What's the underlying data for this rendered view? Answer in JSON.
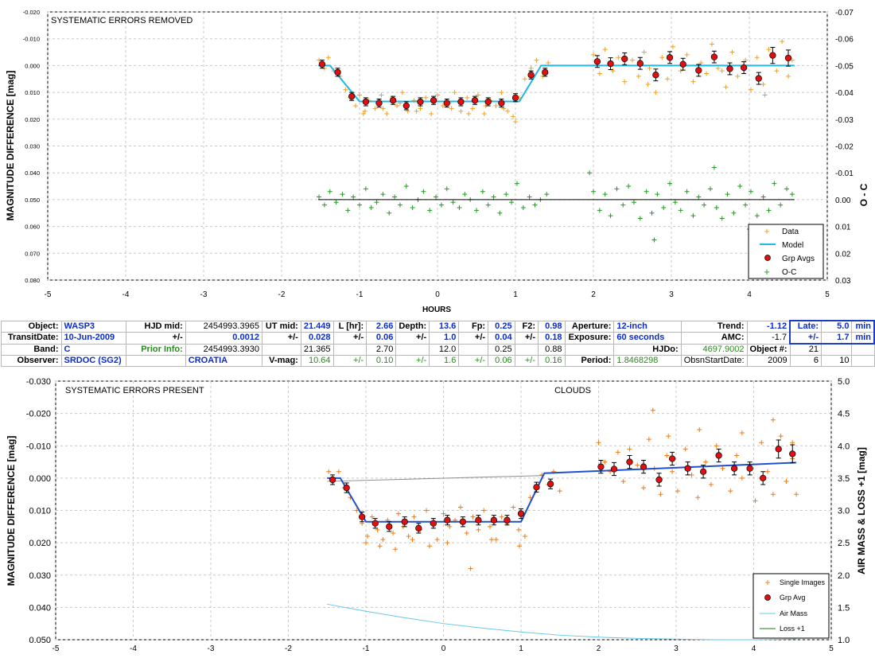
{
  "chart_data": [
    {
      "type": "scatter",
      "title": "SYSTEMATIC ERRORS REMOVED",
      "xlabel": "HOURS",
      "ylabel": "MAGNITUDE DIFFERENCE [mag]",
      "y2label": "O - C",
      "xlim": [
        -5,
        5
      ],
      "ylim": [
        -0.02,
        0.08
      ],
      "y2lim": [
        -0.07,
        0.03
      ],
      "x_ticks": [
        "-5",
        "-4",
        "-3",
        "-2",
        "-1",
        "0",
        "1",
        "2",
        "3",
        "4",
        "5"
      ],
      "y_ticks": [
        "-0.020",
        "-0.010",
        "0.000",
        "0.010",
        "0.020",
        "0.030",
        "0.040",
        "0.050",
        "0.060",
        "0.070",
        "0.080"
      ],
      "y2_ticks": [
        "-0.07",
        "-0.06",
        "-0.05",
        "-0.04",
        "-0.03",
        "-0.02",
        "-0.01",
        "0.00",
        "0.01",
        "0.02",
        "0.03"
      ],
      "grid": true,
      "legend": [
        "Data",
        "Model",
        "Grp Avgs",
        "O-C"
      ],
      "legend_position": "bottom-right",
      "colors": {
        "data": "#f0a020",
        "model": "#1fb8e8",
        "grp": "#e01010",
        "oc": "#229922",
        "ocline": "#000000"
      },
      "series": [
        {
          "name": "Model",
          "x": [
            -1.53,
            -1.38,
            -1.0,
            1.05,
            1.33,
            4.58
          ],
          "y": [
            0.0,
            0.0,
            0.0134,
            0.0134,
            0.0,
            0.0
          ]
        },
        {
          "name": "Grp Avgs",
          "x": [
            -1.48,
            -1.28,
            -1.1,
            -0.92,
            -0.75,
            -0.57,
            -0.4,
            -0.22,
            -0.05,
            0.12,
            0.3,
            0.48,
            0.65,
            0.82,
            1.0,
            1.2,
            1.38,
            2.05,
            2.22,
            2.4,
            2.6,
            2.8,
            2.98,
            3.15,
            3.35,
            3.55,
            3.75,
            3.93,
            4.12,
            4.3,
            4.5
          ],
          "y": [
            -0.0005,
            0.0025,
            0.0115,
            0.0135,
            0.014,
            0.013,
            0.015,
            0.0135,
            0.013,
            0.014,
            0.0135,
            0.013,
            0.0135,
            0.014,
            0.012,
            0.0035,
            0.0025,
            -0.0015,
            -0.0007,
            -0.0025,
            -0.0008,
            0.0035,
            -0.003,
            -0.0005,
            0.0018,
            -0.0032,
            0.0012,
            0.0008,
            0.0048,
            -0.0038,
            -0.0028
          ],
          "err": [
            0.0015,
            0.0015,
            0.0015,
            0.0015,
            0.0015,
            0.0015,
            0.0015,
            0.0015,
            0.0015,
            0.0015,
            0.0015,
            0.0015,
            0.0015,
            0.0015,
            0.0015,
            0.0015,
            0.0015,
            0.0022,
            0.0022,
            0.0022,
            0.0022,
            0.0022,
            0.0022,
            0.0022,
            0.0022,
            0.0022,
            0.0022,
            0.0022,
            0.0022,
            0.003,
            0.003
          ]
        },
        {
          "name": "Data",
          "x": [
            -1.52,
            -1.45,
            -1.4,
            -1.33,
            -1.25,
            -1.18,
            -1.12,
            -1.05,
            -1.0,
            -0.93,
            -0.88,
            -0.8,
            -0.72,
            -0.65,
            -0.58,
            -0.52,
            -0.45,
            -0.38,
            -0.3,
            -0.22,
            -0.15,
            -0.08,
            0.0,
            0.07,
            0.15,
            0.22,
            0.3,
            0.38,
            0.45,
            0.52,
            0.6,
            0.68,
            0.75,
            0.82,
            0.9,
            0.97,
            1.05,
            1.12,
            1.2,
            1.27,
            1.35,
            1.42,
            2.0,
            2.08,
            2.15,
            2.25,
            2.32,
            2.4,
            2.5,
            2.58,
            2.65,
            2.72,
            2.8,
            2.88,
            2.95,
            3.02,
            3.12,
            3.2,
            3.28,
            3.38,
            3.45,
            3.52,
            3.6,
            3.7,
            3.78,
            3.85,
            3.95,
            4.02,
            4.1,
            4.18,
            4.25,
            4.35,
            4.42,
            4.5,
            4.55,
            -0.95,
            -0.7,
            -0.48,
            -0.27,
            0.18,
            0.4,
            0.62,
            0.85,
            1.0,
            2.7,
            3.65,
            4.2
          ],
          "y": [
            -0.002,
            0.001,
            -0.003,
            0.002,
            0.004,
            0.009,
            0.012,
            0.015,
            0.011,
            0.017,
            0.013,
            0.016,
            0.011,
            0.018,
            0.012,
            0.015,
            0.01,
            0.017,
            0.013,
            0.016,
            0.012,
            0.018,
            0.011,
            0.015,
            0.014,
            0.01,
            0.017,
            0.012,
            0.016,
            0.011,
            0.018,
            0.013,
            0.015,
            0.01,
            0.017,
            0.019,
            0.012,
            0.005,
            0.001,
            -0.002,
            0.004,
            -0.001,
            -0.004,
            0.003,
            -0.006,
            0.002,
            -0.003,
            0.006,
            -0.002,
            0.004,
            -0.005,
            0.001,
            0.01,
            -0.003,
            0.005,
            -0.007,
            0.002,
            -0.004,
            0.006,
            -0.001,
            0.003,
            -0.008,
            0.001,
            0.008,
            -0.005,
            0.004,
            -0.002,
            0.009,
            -0.003,
            0.007,
            -0.006,
            0.002,
            -0.009,
            0.004,
            -0.002,
            0.018,
            0.016,
            0.014,
            0.017,
            0.016,
            0.018,
            0.015,
            0.016,
            0.021,
            0.007,
            0.002,
            0.011
          ]
        },
        {
          "name": "O-C",
          "x": [
            -1.52,
            -1.45,
            -1.38,
            -1.3,
            -1.22,
            -1.15,
            -1.08,
            -1.0,
            -0.92,
            -0.85,
            -0.78,
            -0.7,
            -0.62,
            -0.55,
            -0.48,
            -0.4,
            -0.32,
            -0.25,
            -0.18,
            -0.1,
            -0.02,
            0.05,
            0.12,
            0.2,
            0.28,
            0.35,
            0.42,
            0.5,
            0.58,
            0.65,
            0.72,
            0.8,
            0.88,
            0.95,
            1.02,
            1.1,
            1.18,
            1.25,
            1.32,
            1.4,
            2.0,
            2.08,
            2.15,
            2.22,
            2.3,
            2.38,
            2.45,
            2.52,
            2.6,
            2.68,
            2.75,
            2.82,
            2.9,
            2.98,
            3.05,
            3.12,
            3.2,
            3.28,
            3.35,
            3.42,
            3.5,
            3.58,
            3.65,
            3.72,
            3.8,
            3.88,
            3.95,
            4.02,
            4.1,
            4.18,
            4.25,
            4.32,
            4.4,
            4.48,
            4.55,
            1.95,
            2.78,
            3.55,
            4.0
          ],
          "y": [
            -0.001,
            0.002,
            -0.003,
            0.001,
            -0.002,
            0.004,
            -0.001,
            0.002,
            -0.004,
            0.003,
            0.001,
            -0.002,
            0.005,
            -0.001,
            0.002,
            -0.005,
            0.003,
            0.0,
            -0.003,
            0.004,
            -0.001,
            0.002,
            -0.004,
            0.001,
            0.003,
            -0.002,
            0.0,
            0.004,
            -0.003,
            0.002,
            -0.001,
            0.005,
            -0.002,
            0.001,
            -0.006,
            0.003,
            -0.001,
            0.002,
            0.0,
            -0.002,
            -0.003,
            0.004,
            -0.002,
            0.006,
            -0.004,
            0.002,
            -0.005,
            0.001,
            0.007,
            -0.003,
            0.005,
            -0.002,
            0.003,
            -0.006,
            0.001,
            0.004,
            -0.003,
            0.006,
            -0.001,
            0.002,
            -0.004,
            0.003,
            0.007,
            -0.002,
            0.005,
            -0.005,
            0.002,
            -0.003,
            0.006,
            -0.001,
            0.004,
            -0.006,
            0.002,
            -0.004,
            -0.002,
            -0.01,
            0.015,
            -0.012,
            0.011
          ]
        },
        {
          "name": "O-C line",
          "x": [
            -1.53,
            4.58
          ],
          "y": [
            0.0,
            0.0
          ]
        }
      ]
    },
    {
      "type": "scatter",
      "title": "SYSTEMATIC ERRORS PRESENT",
      "annotation": "CLOUDS",
      "xlabel": "",
      "ylabel": "MAGNITUDE DIFFERENCE [mag]",
      "y2label": "AIR MASS & LOSS +1 [mag]",
      "xlim": [
        -5,
        5
      ],
      "ylim": [
        -0.03,
        0.05
      ],
      "y2lim": [
        5.0,
        1.0
      ],
      "x_ticks": [
        "-5",
        "-4",
        "-3",
        "-2",
        "-1",
        "0",
        "1",
        "2",
        "3",
        "4",
        "5"
      ],
      "y_ticks": [
        "-0.030",
        "-0.020",
        "-0.010",
        "0.000",
        "0.010",
        "0.020",
        "0.030",
        "0.040",
        "0.050"
      ],
      "y2_ticks": [
        "5.0",
        "4.5",
        "4.0",
        "3.5",
        "3.0",
        "2.5",
        "2.0",
        "1.5",
        "1.0"
      ],
      "grid": true,
      "legend": [
        "Single Images",
        "Grp Avg",
        "Air Mass",
        "Loss +1"
      ],
      "legend_position": "bottom-right",
      "colors": {
        "data": "#f07a10",
        "model": "#2050d0",
        "grp": "#e01010",
        "airmass": "#66c8e8",
        "loss": "#1a7a1a",
        "trend": "#8c8c8c"
      },
      "series": [
        {
          "name": "Model",
          "x": [
            -1.5,
            -1.33,
            -1.0,
            1.0,
            1.3,
            4.55
          ],
          "y": [
            0.0,
            0.0,
            0.0135,
            0.0135,
            -0.0015,
            -0.0048
          ]
        },
        {
          "name": "Trend",
          "x": [
            -1.5,
            1.3
          ],
          "y": [
            0.001,
            -0.0008
          ]
        },
        {
          "name": "Grp Avg",
          "x": [
            -1.43,
            -1.25,
            -1.05,
            -0.88,
            -0.7,
            -0.5,
            -0.32,
            -0.13,
            0.05,
            0.25,
            0.45,
            0.65,
            0.82,
            1.0,
            1.2,
            1.38,
            2.03,
            2.2,
            2.4,
            2.58,
            2.78,
            2.95,
            3.15,
            3.35,
            3.55,
            3.75,
            3.95,
            4.12,
            4.32,
            4.5
          ],
          "y": [
            0.0005,
            0.003,
            0.012,
            0.014,
            0.015,
            0.0135,
            0.0155,
            0.014,
            0.013,
            0.0135,
            0.013,
            0.013,
            0.013,
            0.011,
            0.0028,
            0.0018,
            -0.0035,
            -0.0028,
            -0.005,
            -0.0035,
            0.0005,
            -0.006,
            -0.003,
            -0.002,
            -0.007,
            -0.003,
            -0.003,
            0.0,
            -0.009,
            -0.0075
          ],
          "err": [
            0.0015,
            0.0015,
            0.0015,
            0.0015,
            0.0015,
            0.0015,
            0.0015,
            0.0015,
            0.0015,
            0.0015,
            0.0015,
            0.0015,
            0.0015,
            0.0015,
            0.0015,
            0.0015,
            0.002,
            0.002,
            0.002,
            0.002,
            0.002,
            0.002,
            0.002,
            0.002,
            0.002,
            0.002,
            0.002,
            0.002,
            0.0028,
            0.0028
          ]
        },
        {
          "name": "Single Images",
          "x": [
            -1.48,
            -1.42,
            -1.35,
            -1.28,
            -1.2,
            -1.12,
            -1.05,
            -0.98,
            -0.92,
            -0.85,
            -0.78,
            -0.72,
            -0.65,
            -0.58,
            -0.52,
            -0.45,
            -0.38,
            -0.3,
            -0.22,
            -0.15,
            -0.08,
            0.0,
            0.08,
            0.15,
            0.22,
            0.3,
            0.38,
            0.45,
            0.52,
            0.6,
            0.68,
            0.75,
            0.82,
            0.9,
            0.97,
            1.05,
            1.12,
            1.2,
            1.27,
            1.35,
            1.42,
            2.0,
            2.08,
            2.15,
            2.25,
            2.32,
            2.4,
            2.5,
            2.58,
            2.65,
            2.72,
            2.8,
            2.88,
            2.95,
            3.02,
            3.12,
            3.2,
            3.28,
            3.38,
            3.45,
            3.52,
            3.6,
            3.7,
            3.78,
            3.85,
            3.95,
            4.02,
            4.1,
            4.18,
            4.25,
            4.35,
            4.42,
            4.5,
            4.55,
            -1.0,
            -0.82,
            -0.62,
            -0.4,
            -0.18,
            0.05,
            0.35,
            0.62,
            0.98,
            1.5,
            2.7,
            2.9,
            3.3,
            3.85,
            4.25,
            4.5
          ],
          "y": [
            -0.002,
            0.001,
            -0.002,
            0.003,
            0.006,
            0.01,
            0.014,
            0.018,
            0.012,
            0.016,
            0.019,
            0.013,
            0.017,
            0.011,
            0.015,
            0.018,
            0.012,
            0.016,
            0.01,
            0.014,
            0.019,
            0.011,
            0.015,
            0.013,
            0.009,
            0.017,
            0.012,
            0.016,
            0.01,
            0.015,
            0.019,
            0.012,
            0.014,
            0.009,
            0.016,
            0.018,
            0.006,
            0.003,
            -0.001,
            0.002,
            -0.002,
            -0.011,
            -0.005,
            -0.002,
            -0.008,
            0.001,
            -0.009,
            -0.004,
            0.003,
            -0.012,
            -0.003,
            0.005,
            -0.007,
            -0.002,
            0.004,
            -0.009,
            -0.001,
            0.006,
            -0.005,
            0.002,
            -0.01,
            -0.003,
            0.004,
            -0.007,
            0.0,
            -0.004,
            0.007,
            -0.011,
            -0.002,
            0.005,
            -0.013,
            0.001,
            -0.006,
            0.005,
            0.02,
            0.021,
            0.022,
            0.019,
            0.021,
            0.02,
            0.028,
            0.019,
            0.021,
            0.004,
            -0.021,
            -0.013,
            -0.015,
            -0.014,
            -0.018,
            -0.011
          ]
        },
        {
          "name": "Air Mass",
          "x": [
            -1.5,
            -1.0,
            -0.5,
            0.0,
            0.5,
            1.0,
            1.5,
            2.0,
            2.5,
            3.0,
            3.5,
            4.0,
            4.55
          ],
          "y2": [
            1.55,
            1.44,
            1.34,
            1.25,
            1.18,
            1.12,
            1.07,
            1.04,
            1.02,
            1.01,
            1.0,
            1.0,
            1.01
          ]
        }
      ]
    }
  ],
  "info_table": {
    "rows": [
      [
        "Object:",
        "WASP3",
        "HJD mid:",
        "2454993.3965",
        "UT mid:",
        "21.449",
        "L [hr]:",
        "2.66",
        "Depth:",
        "13.6",
        "Fp:",
        "0.25",
        "F2:",
        "0.98",
        "Aperture:",
        "12-inch",
        "Trend:",
        "-1.12",
        "Late:",
        "5.0",
        "min"
      ],
      [
        "TransitDate:",
        "10-Jun-2009",
        "+/-",
        "0.0012",
        "+/-",
        "0.028",
        "+/-",
        "0.06",
        "+/-",
        "1.0",
        "+/-",
        "0.04",
        "+/-",
        "0.18",
        "Exposure:",
        "60 seconds",
        "AMC:",
        "-1.7",
        "+/-",
        "1.7",
        "min"
      ],
      [
        "Band:",
        "C",
        "Prior Info:",
        "2454993.3930",
        "",
        "21.365",
        "",
        "2.70",
        "",
        "12.0",
        "",
        "0.25",
        "",
        "0.88",
        "",
        "HJDo:",
        "4697.9002",
        "Object #:",
        "21",
        "",
        ""
      ],
      [
        "Observer:",
        "SRDOC (SG2)",
        "",
        "CROATIA",
        "V-mag:",
        "10.64",
        "+/-",
        "0.10",
        "+/-",
        "1.6",
        "+/-",
        "0.06",
        "+/-",
        "0.16",
        "Period:",
        "1.8468298",
        "ObsnStartDate:",
        "2009",
        "6",
        "10",
        ""
      ]
    ]
  }
}
